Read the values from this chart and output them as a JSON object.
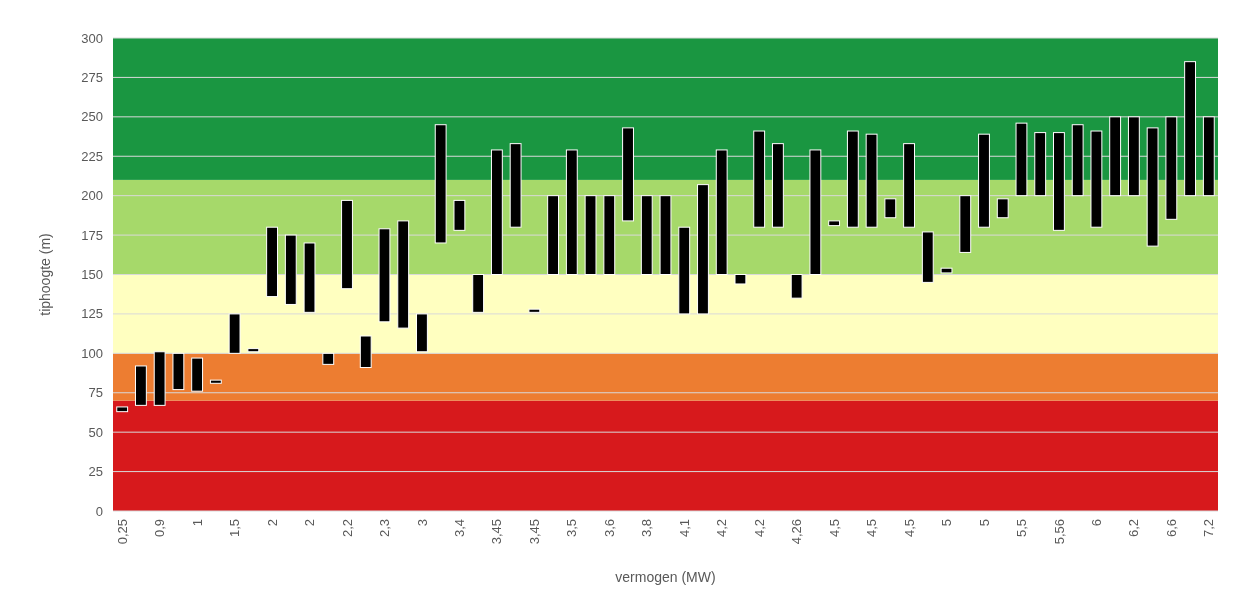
{
  "chart_data": {
    "type": "bar",
    "xlabel": "vermogen (MW)",
    "ylabel": "tiphoogte (m)",
    "categories": [
      "0,25",
      null,
      "0,9",
      null,
      "1",
      null,
      "1,5",
      null,
      "2",
      null,
      "2",
      null,
      "2,2",
      null,
      "2,3",
      null,
      "3",
      null,
      "3,4",
      null,
      "3,45",
      null,
      "3,45",
      null,
      "3,5",
      null,
      "3,6",
      null,
      "3,8",
      null,
      "4,1",
      null,
      "4,2",
      null,
      "4,2",
      null,
      "4,26",
      null,
      "4,5",
      null,
      "4,5",
      null,
      "4,5",
      null,
      "5",
      null,
      "5",
      null,
      "5,5",
      null,
      "5,56",
      null,
      "6",
      null,
      "6,2",
      null,
      "6,6",
      null,
      "7,2"
    ],
    "base": [
      63,
      67,
      67,
      77,
      76,
      81,
      100,
      101,
      136,
      131,
      126,
      93,
      141,
      91,
      120,
      116,
      101,
      170,
      178,
      126,
      150,
      180,
      126,
      150,
      150,
      150,
      150,
      184,
      150,
      150,
      125,
      125,
      150,
      144,
      180,
      180,
      135,
      150,
      181,
      180,
      180,
      186,
      180,
      145,
      151,
      164,
      180,
      186,
      200,
      200,
      178,
      200,
      180,
      200,
      200,
      168,
      185,
      200,
      200
    ],
    "values": [
      3,
      25,
      34,
      23,
      21,
      2,
      25,
      2,
      44,
      44,
      44,
      7,
      56,
      20,
      59,
      68,
      24,
      75,
      19,
      24,
      79,
      53,
      2,
      50,
      79,
      50,
      50,
      59,
      50,
      50,
      55,
      82,
      79,
      6,
      61,
      53,
      15,
      79,
      3,
      61,
      59,
      12,
      53,
      32,
      3,
      36,
      59,
      12,
      46,
      40,
      62,
      45,
      61,
      50,
      50,
      75,
      65,
      85,
      50
    ],
    "color": "#000000",
    "ylim": [
      0,
      300
    ],
    "yticks": [
      0,
      25,
      50,
      75,
      100,
      125,
      150,
      175,
      200,
      225,
      250,
      275,
      300
    ],
    "grid": "y",
    "bands": [
      {
        "axis": "y",
        "from": 0,
        "to": 70,
        "color": "#d7191c"
      },
      {
        "axis": "y",
        "from": 70,
        "to": 100,
        "color": "#ed7d31"
      },
      {
        "axis": "y",
        "from": 100,
        "to": 150,
        "color": "#ffffc0"
      },
      {
        "axis": "y",
        "from": 150,
        "to": 210,
        "color": "#a6d96a"
      },
      {
        "axis": "y",
        "from": 210,
        "to": 300,
        "color": "#1a9641"
      }
    ]
  }
}
